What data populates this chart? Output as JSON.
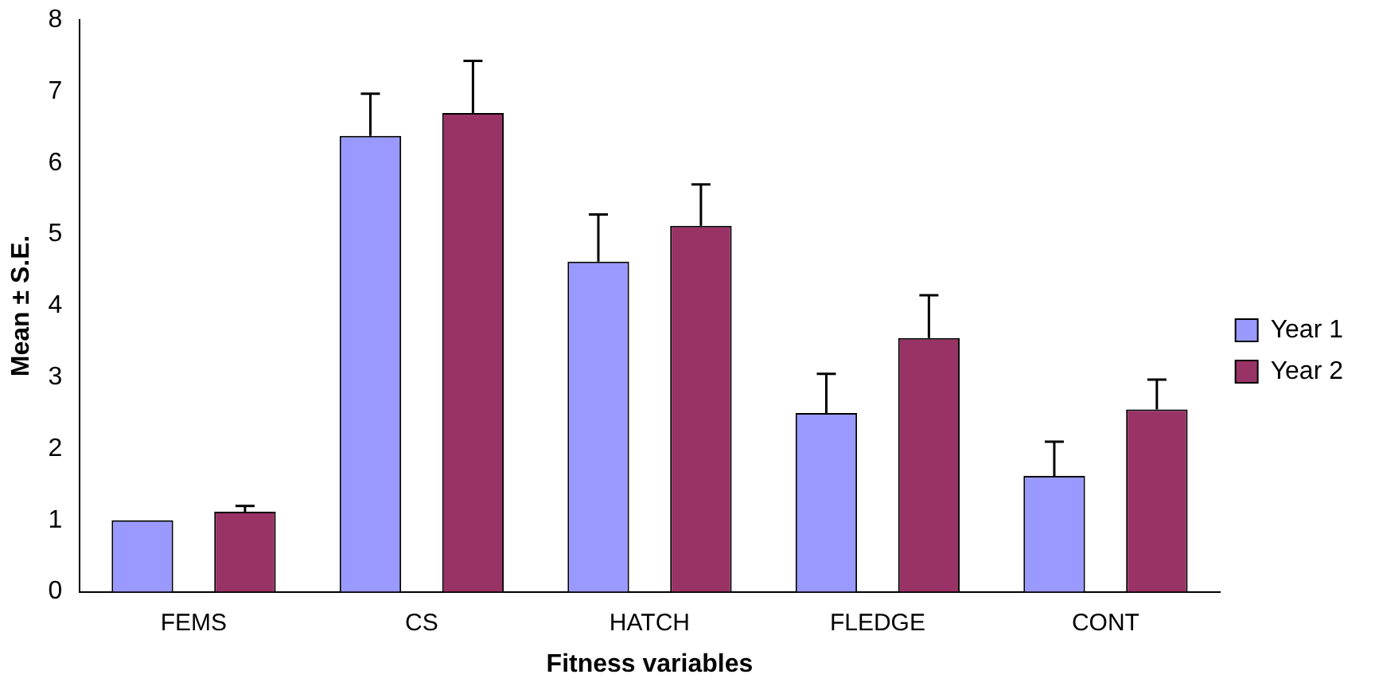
{
  "chart_data": {
    "type": "bar",
    "xlabel": "Fitness variables",
    "ylabel": "Mean ± S.E.",
    "categories": [
      "FEMS",
      "CS",
      "HATCH",
      "FLEDGE",
      "CONT"
    ],
    "series": [
      {
        "name": "Year 1",
        "color": "#9999ff",
        "values": [
          1.0,
          6.38,
          4.62,
          2.5,
          1.62
        ],
        "errors": [
          null,
          [
            6.38,
            6.97
          ],
          [
            4.62,
            5.28
          ],
          [
            2.5,
            3.05
          ],
          [
            1.62,
            2.1
          ]
        ]
      },
      {
        "name": "Year 2",
        "color": "#993366",
        "values": [
          1.12,
          6.7,
          5.12,
          3.55,
          2.55
        ],
        "errors": [
          [
            1.12,
            1.2
          ],
          [
            6.7,
            7.43
          ],
          [
            5.12,
            5.7
          ],
          [
            3.55,
            4.15
          ],
          [
            2.55,
            2.97
          ]
        ]
      }
    ],
    "ylim": [
      0,
      8
    ],
    "yticks": [
      0,
      1,
      2,
      3,
      4,
      5,
      6,
      7,
      8
    ],
    "grid": false,
    "legend": "right"
  }
}
